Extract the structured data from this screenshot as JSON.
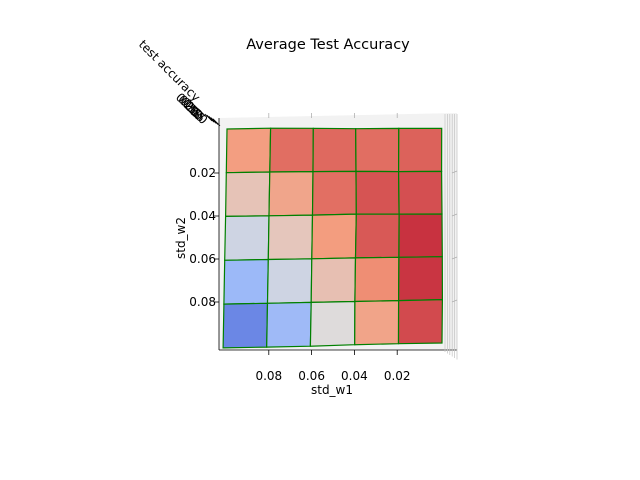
{
  "chart_data": {
    "type": "surface",
    "title": "Average Test Accuracy",
    "xlabel": "std_w1",
    "ylabel": "std_w2",
    "zlabel": "test accuracy",
    "x_ticks": [
      "0.08",
      "0.06",
      "0.04",
      "0.02"
    ],
    "y_ticks": [
      "0.02",
      "0.04",
      "0.06",
      "0.08"
    ],
    "z_ticks": [
      "0.20",
      "0.35",
      "0.50",
      "0.65",
      "0.80"
    ],
    "x": [
      0.1,
      0.08,
      0.06,
      0.04,
      0.02,
      0.0
    ],
    "y": [
      0.0,
      0.02,
      0.04,
      0.06,
      0.08,
      0.1
    ],
    "z": [
      [
        0.66,
        0.8,
        0.78,
        0.72,
        0.76,
        0.79
      ],
      [
        0.55,
        0.66,
        0.74,
        0.77,
        0.73,
        0.77
      ],
      [
        0.44,
        0.53,
        0.65,
        0.81,
        0.82,
        0.84
      ],
      [
        0.28,
        0.42,
        0.54,
        0.68,
        0.79,
        0.88
      ],
      [
        0.15,
        0.28,
        0.43,
        0.58,
        0.74,
        0.9
      ],
      [
        0.02,
        0.15,
        0.3,
        0.55,
        0.72,
        0.83
      ]
    ],
    "colormap": "coolwarm",
    "edge_color": "#008000",
    "grid": true
  }
}
